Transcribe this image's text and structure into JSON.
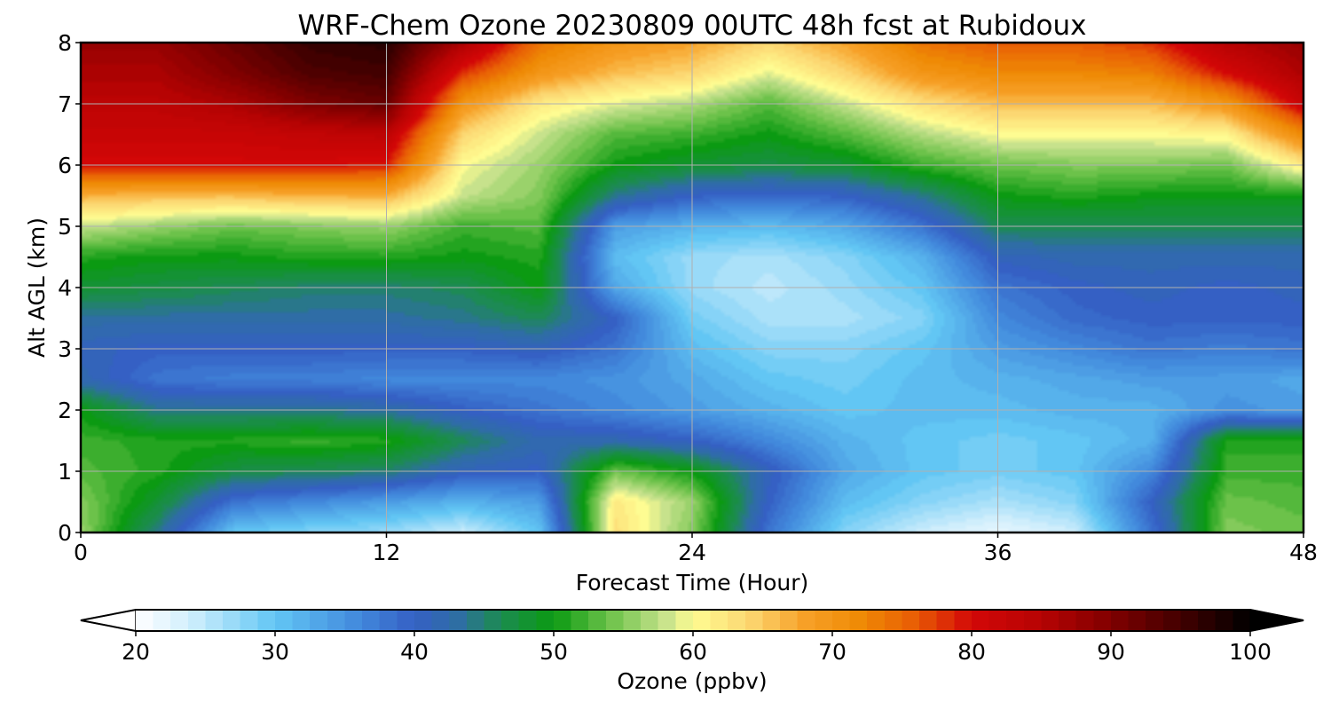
{
  "chart_data": {
    "type": "heatmap",
    "title": "WRF-Chem Ozone  20230809 00UTC 48h fcst at Rubidoux",
    "xlabel": "Forecast Time (Hour)",
    "ylabel": "Alt AGL (km)",
    "xlim": [
      0,
      48
    ],
    "ylim": [
      0,
      8
    ],
    "x_ticks": [
      "0",
      "12",
      "24",
      "36",
      "48"
    ],
    "y_ticks": [
      "0",
      "1",
      "2",
      "3",
      "4",
      "5",
      "6",
      "7",
      "8"
    ],
    "grid": true,
    "x": [
      0,
      3,
      6,
      9,
      12,
      15,
      18,
      21,
      24,
      27,
      30,
      33,
      36,
      39,
      42,
      45,
      48
    ],
    "y": [
      0,
      0.5,
      1,
      1.5,
      2,
      2.5,
      3,
      3.5,
      4,
      4.5,
      5,
      5.5,
      6,
      6.5,
      7,
      7.5,
      8
    ],
    "z": [
      [
        56,
        44,
        30,
        28,
        27,
        24,
        30,
        63,
        55,
        38,
        28,
        24,
        22,
        24,
        38,
        55,
        54
      ],
      [
        55,
        48,
        38,
        36,
        34,
        32,
        34,
        62,
        56,
        40,
        31,
        28,
        26,
        28,
        40,
        54,
        53
      ],
      [
        53,
        51,
        47,
        46,
        45,
        41,
        40,
        54,
        50,
        41,
        33,
        30,
        29,
        30,
        36,
        52,
        52
      ],
      [
        52,
        51,
        51,
        52,
        51,
        46,
        42,
        42,
        40,
        36,
        32,
        30,
        29,
        30,
        32,
        51,
        51
      ],
      [
        50,
        44,
        44,
        44,
        43,
        40,
        38,
        36,
        34,
        32,
        30,
        31,
        31,
        32,
        32,
        35,
        34
      ],
      [
        42,
        38,
        37,
        37,
        36,
        36,
        36,
        35,
        33,
        30,
        29,
        31,
        32,
        33,
        34,
        34,
        33
      ],
      [
        41,
        40,
        40,
        40,
        40,
        40,
        41,
        38,
        31,
        28,
        28,
        30,
        34,
        36,
        38,
        37,
        38
      ],
      [
        43,
        43,
        43,
        43,
        43,
        44,
        46,
        40,
        29,
        26,
        26,
        28,
        36,
        39,
        40,
        40,
        40
      ],
      [
        48,
        47,
        46,
        45,
        45,
        46,
        50,
        33,
        27,
        25,
        27,
        30,
        38,
        40,
        41,
        40,
        41
      ],
      [
        51,
        50,
        50,
        51,
        51,
        50,
        51,
        31,
        27,
        26,
        28,
        32,
        41,
        42,
        42,
        42,
        42
      ],
      [
        58,
        56,
        54,
        55,
        56,
        52,
        53,
        34,
        32,
        31,
        33,
        38,
        46,
        46,
        46,
        46,
        46
      ],
      [
        67,
        66,
        66,
        67,
        67,
        58,
        55,
        44,
        40,
        39,
        40,
        44,
        50,
        51,
        50,
        50,
        50
      ],
      [
        80,
        80,
        80,
        80,
        79,
        60,
        56,
        50,
        48,
        47,
        48,
        52,
        54,
        55,
        55,
        54,
        62
      ],
      [
        82,
        82,
        82,
        83,
        84,
        64,
        58,
        53,
        52,
        50,
        53,
        57,
        60,
        60,
        60,
        61,
        72
      ],
      [
        84,
        84,
        86,
        90,
        92,
        70,
        62,
        59,
        57,
        53,
        58,
        63,
        66,
        66,
        66,
        70,
        82
      ],
      [
        86,
        86,
        90,
        94,
        95,
        78,
        70,
        66,
        64,
        59,
        64,
        70,
        72,
        72,
        73,
        80,
        86
      ],
      [
        88,
        88,
        92,
        96,
        97,
        86,
        74,
        70,
        68,
        64,
        68,
        74,
        76,
        76,
        78,
        85,
        88
      ]
    ],
    "colorbar": {
      "label": "Ozone  (ppbv)",
      "ticks": [
        "20",
        "30",
        "40",
        "50",
        "60",
        "70",
        "80",
        "90",
        "100"
      ],
      "range": [
        20,
        100
      ],
      "extend": "both",
      "stops": [
        [
          20,
          "#ffffff"
        ],
        [
          24,
          "#cfeefc"
        ],
        [
          30,
          "#62c6f4"
        ],
        [
          36,
          "#4289dc"
        ],
        [
          40,
          "#3560c4"
        ],
        [
          43,
          "#2f6da6"
        ],
        [
          46,
          "#1d8a55"
        ],
        [
          50,
          "#0b9a12"
        ],
        [
          54,
          "#6cc24a"
        ],
        [
          58,
          "#c7e28c"
        ],
        [
          60,
          "#fefc92"
        ],
        [
          64,
          "#fcd772"
        ],
        [
          68,
          "#f7a128"
        ],
        [
          72,
          "#ef8a05"
        ],
        [
          76,
          "#e85c05"
        ],
        [
          80,
          "#d30707"
        ],
        [
          85,
          "#b60303"
        ],
        [
          90,
          "#800000"
        ],
        [
          95,
          "#420000"
        ],
        [
          100,
          "#000000"
        ]
      ]
    }
  }
}
